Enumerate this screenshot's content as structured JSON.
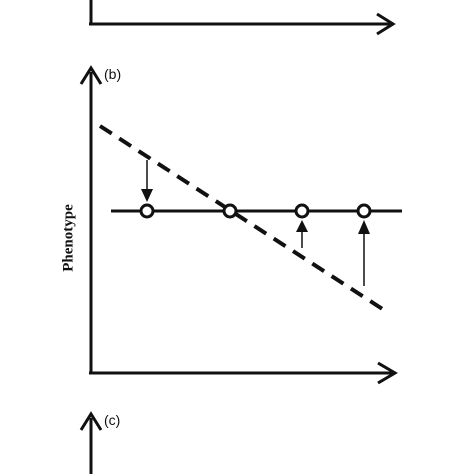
{
  "panels": {
    "b": {
      "label": "(b)",
      "y_axis_label": "Phenotype"
    },
    "c": {
      "label": "(c)"
    }
  },
  "diagram": {
    "solid_line": "constant phenotype (horizontal line)",
    "dashed_line": "declining phenotype (dashed diagonal)",
    "points_count": 4,
    "arrow_directions": [
      "down",
      "up",
      "up"
    ]
  },
  "colors": {
    "ink": "#111111",
    "background": "#ffffff"
  }
}
